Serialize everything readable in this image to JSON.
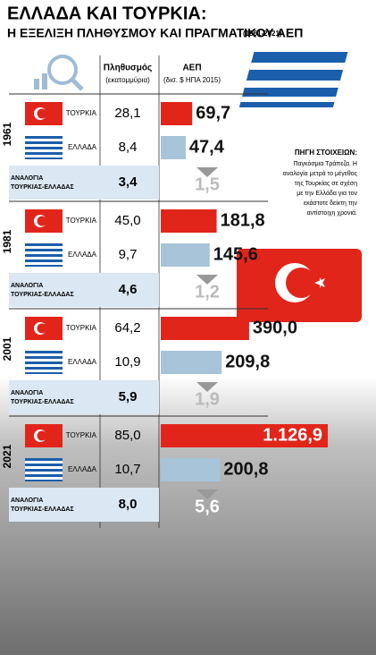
{
  "title": "ΕΛΛΑΔΑ ΚΑΙ ΤΟΥΡΚΙΑ:",
  "subtitle": "Η ΕΞΕΛΙΞΗ ΠΛΗΘΥΣΜΟΥ ΚΑΙ ΠΡΑΓΜΑΤΙΚΟΥ ΑΕΠ",
  "subtitle_years": "(1961-2021)",
  "columns": {
    "population": "Πληθυσμός",
    "population_unit": "(εκατομμύρια)",
    "gdp": "ΑΕΠ",
    "gdp_unit": "(δισ. $ ΗΠΑ 2015)"
  },
  "source": {
    "title": "ΠΗΓΗ ΣΤΟΙΧΕΙΩΝ:",
    "lines": [
      "Παγκόσμια Τράπεζα. Η",
      "αναλογία μετρά το μέγεθος",
      "της Τουρκίας σε σχέση",
      "με την Ελλάδα για τον",
      "εκάστοτε δείκτη την",
      "αντίστοιχη χρονιά."
    ]
  },
  "periods": [
    {
      "year": "1961",
      "turkey": {
        "label": "ΤΟΥΡΚΙΑ",
        "population": {
          "value": 28.1,
          "label": "28,1"
        },
        "gdp": {
          "value": 69.7,
          "label": "69,7"
        }
      },
      "greece": {
        "label": "ΕΛΛΑΔΑ",
        "population": {
          "value": 8.4,
          "label": "8,4"
        },
        "gdp": {
          "value": 47.4,
          "label": "47,4"
        }
      },
      "ratio": {
        "label_lines": [
          "ΑΝΑΛΟΓΙΑ",
          "ΤΟΥΡΚΙΑΣ-ΕΛΛΑΔΑΣ"
        ],
        "population": {
          "value": 3.4,
          "label": "3,4"
        },
        "gdp": {
          "value": 1.5,
          "label": "1,5"
        }
      }
    },
    {
      "year": "1981",
      "turkey": {
        "label": "ΤΟΥΡΚΙΑ",
        "population": {
          "value": 45.0,
          "label": "45,0"
        },
        "gdp": {
          "value": 181.8,
          "label": "181,8"
        }
      },
      "greece": {
        "label": "ΕΛΛΑΔΑ",
        "population": {
          "value": 9.7,
          "label": "9,7"
        },
        "gdp": {
          "value": 145.6,
          "label": "145,6"
        }
      },
      "ratio": {
        "label_lines": [
          "ΑΝΑΛΟΓΙΑ",
          "ΤΟΥΡΚΙΑΣ-ΕΛΛΑΔΑΣ"
        ],
        "population": {
          "value": 4.6,
          "label": "4,6"
        },
        "gdp": {
          "value": 1.2,
          "label": "1,2"
        }
      }
    },
    {
      "year": "2001",
      "turkey": {
        "label": "ΤΟΥΡΚΙΑ",
        "population": {
          "value": 64.2,
          "label": "64,2"
        },
        "gdp": {
          "value": 390.0,
          "label": "390,0"
        }
      },
      "greece": {
        "label": "ΕΛΛΑΔΑ",
        "population": {
          "value": 10.9,
          "label": "10,9"
        },
        "gdp": {
          "value": 209.8,
          "label": "209,8"
        }
      },
      "ratio": {
        "label_lines": [
          "ΑΝΑΛΟΓΙΑ",
          "ΤΟΥΡΚΙΑΣ-ΕΛΛΑΔΑΣ"
        ],
        "population": {
          "value": 5.9,
          "label": "5,9"
        },
        "gdp": {
          "value": 1.9,
          "label": "1,9"
        }
      }
    },
    {
      "year": "2021",
      "turkey": {
        "label": "ΤΟΥΡΚΙΑ",
        "population": {
          "value": 85.0,
          "label": "85,0"
        },
        "gdp": {
          "value": 1126.9,
          "label": "1.126,9"
        }
      },
      "greece": {
        "label": "ΕΛΛΑΔΑ",
        "population": {
          "value": 10.7,
          "label": "10,7"
        },
        "gdp": {
          "value": 200.8,
          "label": "200,8"
        }
      },
      "ratio": {
        "label_lines": [
          "ΑΝΑΛΟΓΙΑ",
          "ΤΟΥΡΚΙΑΣ-ΕΛΛΑΔΑΣ"
        ],
        "population": {
          "value": 8.0,
          "label": "8,0"
        },
        "gdp": {
          "value": 5.6,
          "label": "5,6"
        }
      }
    }
  ]
}
